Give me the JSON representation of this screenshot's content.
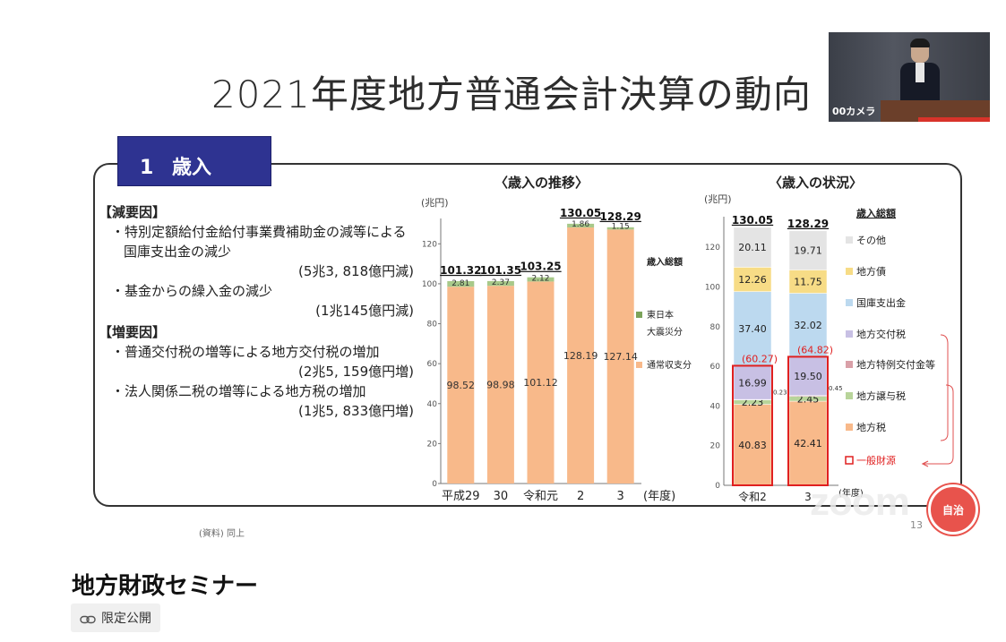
{
  "slide": {
    "title": "2021年度地方普通会計決算の動向",
    "section_number": "1",
    "section_label": "歳入",
    "factors": {
      "decrease_heading": "【減要因】",
      "decrease_items": [
        {
          "text": "・特別定額給付金給付事業費補助金の減等による国庫支出金の減少",
          "amount": "(5兆3, 818億円減)"
        },
        {
          "text": "・基金からの繰入金の減少",
          "amount": "(1兆145億円減)"
        }
      ],
      "increase_heading": "【増要因】",
      "increase_items": [
        {
          "text": "・普通交付税の増等による地方交付税の増加",
          "amount": "(2兆5, 159億円増)"
        },
        {
          "text": "・法人関係二税の増等による地方税の増加",
          "amount": "(1兆5, 833億円増)"
        }
      ]
    },
    "source_note": "(資料) 同上",
    "page_number": "13"
  },
  "chart_data": [
    {
      "type": "bar",
      "title": "〈歳入の推移〉",
      "unit_label": "(兆円)",
      "x_unit": "(年度)",
      "categories": [
        "平成29",
        "30",
        "令和元",
        "2",
        "3"
      ],
      "ylim": [
        0,
        130
      ],
      "yticks": [
        0,
        20,
        40,
        60,
        80,
        100,
        120
      ],
      "totals": [
        "101.32",
        "101.35",
        "103.25",
        "130.05",
        "128.29"
      ],
      "series": [
        {
          "name": "通常収支分",
          "values": [
            98.52,
            98.98,
            101.12,
            128.19,
            127.14
          ],
          "color": "#f8b98a"
        },
        {
          "name": "東日本大震災分",
          "values": [
            2.81,
            2.37,
            2.12,
            1.86,
            1.15
          ],
          "color": "#a8c98a"
        }
      ],
      "legend_title": "歳入総額",
      "legend": [
        {
          "label": "東日本",
          "label2": "大震災分",
          "color": "#7ba35a"
        },
        {
          "label": "通常収支分",
          "color": "#f8b98a"
        }
      ]
    },
    {
      "type": "bar",
      "title": "〈歳入の状況〉",
      "unit_label": "(兆円)",
      "x_unit": "(年度)",
      "categories": [
        "令和2",
        "3"
      ],
      "ylim": [
        0,
        130
      ],
      "yticks": [
        0,
        20,
        40,
        60,
        80,
        100,
        120
      ],
      "totals": [
        "130.05",
        "128.29"
      ],
      "series": [
        {
          "name": "地方税",
          "values": [
            40.83,
            42.41
          ],
          "color": "#f8b98a"
        },
        {
          "name": "地方譲与税",
          "values": [
            2.23,
            2.45
          ],
          "color": "#b8d49a"
        },
        {
          "name": "地方特例交付金等",
          "values": [
            0.23,
            0.45
          ],
          "color": "#d9a0a8"
        },
        {
          "name": "地方交付税",
          "values": [
            16.99,
            19.5
          ],
          "color": "#c8c0e4"
        },
        {
          "name": "国庫支出金",
          "values": [
            37.4,
            32.02
          ],
          "color": "#bcd9ef"
        },
        {
          "name": "地方債",
          "values": [
            12.26,
            11.75
          ],
          "color": "#f7dc86"
        },
        {
          "name": "その他",
          "values": [
            20.11,
            19.71
          ],
          "color": "#e4e4e4"
        }
      ],
      "general_revenue": [
        "(60.27)",
        "(64.82)"
      ],
      "side_labels": [
        "0.23",
        "0.45"
      ],
      "legend_title": "歳入総額",
      "legend": [
        {
          "label": "その他",
          "color": "#e4e4e4"
        },
        {
          "label": "地方債",
          "color": "#f7dc86"
        },
        {
          "label": "国庫支出金",
          "color": "#bcd9ef"
        },
        {
          "label": "地方交付税",
          "color": "#c8c0e4"
        },
        {
          "label": "地方特例交付金等",
          "color": "#d9a0a8"
        },
        {
          "label": "地方譲与税",
          "color": "#b8d49a"
        },
        {
          "label": "地方税",
          "color": "#f8b98a"
        },
        {
          "label": "一般財源",
          "color": "#e02020"
        }
      ]
    }
  ],
  "camera": {
    "label": "00カメラ"
  },
  "watermark": {
    "zoom": "zoom",
    "logo": "自治"
  },
  "video": {
    "title": "地方財政セミナー",
    "visibility_label": "限定公開",
    "visibility_icon": "link-icon"
  }
}
